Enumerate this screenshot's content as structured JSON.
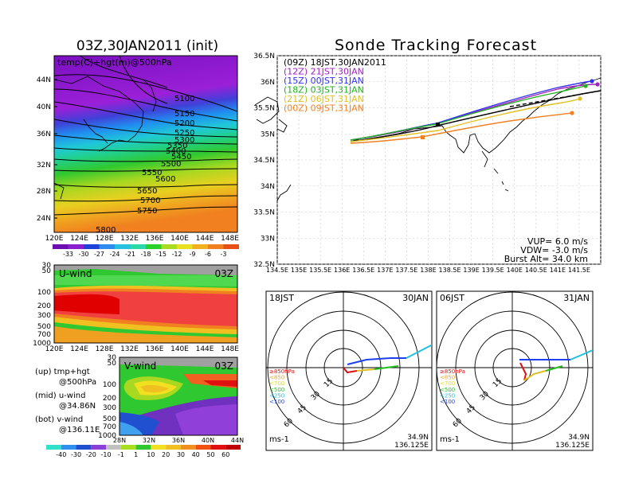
{
  "header": {
    "left_title": "03Z,30JAN2011 (init)",
    "right_title": "Sonde Tracking Forecast"
  },
  "map500": {
    "field_label": "temp(C)+hgt(m)@500hPa",
    "lon_ticks": [
      "120E",
      "124E",
      "128E",
      "132E",
      "136E",
      "140E",
      "144E",
      "148E"
    ],
    "lat_ticks": [
      "44N",
      "40N",
      "36N",
      "32N",
      "28N",
      "24N"
    ],
    "contour_labels": [
      "5100",
      "5150",
      "5200",
      "5250",
      "5300",
      "5350",
      "5400",
      "5450",
      "5500",
      "5550",
      "5600",
      "5650",
      "5700",
      "5750",
      "5800"
    ],
    "colorbar_labels": [
      "-33",
      "-30",
      "-27",
      "-24",
      "-21",
      "-18",
      "-15",
      "-12",
      "-9",
      "-6",
      "-3"
    ],
    "colorbar_colors": [
      "#6b0fb0",
      "#8a1fd0",
      "#2040d8",
      "#2f8af0",
      "#28c0e0",
      "#2ad8a8",
      "#2cd02c",
      "#a8dc20",
      "#e8e020",
      "#f0b020",
      "#f08020",
      "#e85018"
    ]
  },
  "uwind": {
    "title": "U-wind",
    "time": "03Z",
    "p_ticks": [
      "30",
      "50",
      "100",
      "200",
      "300",
      "500",
      "700",
      "1000"
    ],
    "lon_ticks": [
      "120E",
      "124E",
      "128E",
      "132E",
      "136E",
      "140E",
      "144E",
      "148E"
    ]
  },
  "vwind": {
    "title": "V-wind",
    "time": "03Z",
    "p_ticks": [
      "30",
      "50",
      "100",
      "200",
      "300",
      "500",
      "700",
      "1000"
    ],
    "lat_ticks": [
      "28N",
      "32N",
      "36N",
      "40N",
      "44N"
    ],
    "colorbar_labels": [
      "-40",
      "-30",
      "-20",
      "-10",
      "-1",
      "1",
      "10",
      "20",
      "30",
      "40",
      "50",
      "60"
    ],
    "colorbar_colors": [
      "#30e0c8",
      "#3090f0",
      "#2050d0",
      "#8a40d8",
      "#c0c0c0",
      "#a8e020",
      "#30c830",
      "#f0e020",
      "#f0c020",
      "#f09020",
      "#f05010",
      "#e01010",
      "#c00000"
    ]
  },
  "legend_notes": [
    {
      "line1": "(up) tmp+hgt",
      "line2": "@500hPa"
    },
    {
      "line1": "(mid) u-wind",
      "line2": "@34.86N"
    },
    {
      "line1": "(bot) v-wind",
      "line2": "@136.11E"
    }
  ],
  "tracking": {
    "lon_ticks": [
      "134.5E",
      "135E",
      "135.5E",
      "136E",
      "136.5E",
      "137E",
      "137.5E",
      "138E",
      "138.5E",
      "139E",
      "139.5E",
      "140E",
      "140.5E",
      "141E",
      "141.5E"
    ],
    "lat_ticks": [
      "36.5N",
      "36N",
      "35.5N",
      "35N",
      "34.5N",
      "34N",
      "33.5N",
      "33N",
      "32.5N"
    ],
    "legend": [
      {
        "label": "(09Z)  18JST,30JAN2011",
        "color": "#000000"
      },
      {
        "label": "(12Z)  21JST,30JAN",
        "color": "#a020c0"
      },
      {
        "label": "(15Z)  00JST,31JAN",
        "color": "#3030f0"
      },
      {
        "label": "(18Z)  03JST,31JAN",
        "color": "#20b020"
      },
      {
        "label": "(21Z)  06JST,31JAN",
        "color": "#e0c020"
      },
      {
        "label": "(00Z)  09JST,31JAN",
        "color": "#f08020"
      }
    ],
    "params": {
      "vup": "VUP=  6.0  m/s",
      "vdw": "VDW= -3.0  m/s",
      "burst": "Burst Alt= 34.0  km"
    }
  },
  "hodo_left": {
    "time": "18JST",
    "date": "30JAN",
    "unit": "ms-1",
    "lat": "34.9N",
    "lon": "136.125E",
    "ring_labels": [
      "15",
      "30",
      "45",
      "60"
    ],
    "level_legend": [
      {
        "label": "≥850hPa",
        "color": "#e01010"
      },
      {
        "label": "<850",
        "color": "#f0a020"
      },
      {
        "label": "<700",
        "color": "#e0e020"
      },
      {
        "label": "<500",
        "color": "#20c020"
      },
      {
        "label": "<250",
        "color": "#20c0e0"
      },
      {
        "label": "<100",
        "color": "#2040f0"
      }
    ]
  },
  "hodo_right": {
    "time": "06JST",
    "date": "31JAN",
    "unit": "ms-1",
    "lat": "34.9N",
    "lon": "136.125E",
    "ring_labels": [
      "15",
      "30",
      "45",
      "60"
    ],
    "level_legend": [
      {
        "label": "≥850hPa",
        "color": "#e01010"
      },
      {
        "label": "<850",
        "color": "#f0a020"
      },
      {
        "label": "<700",
        "color": "#e0e020"
      },
      {
        "label": "<500",
        "color": "#20c020"
      },
      {
        "label": "<250",
        "color": "#20c0e0"
      },
      {
        "label": "<100",
        "color": "#2040f0"
      }
    ]
  }
}
